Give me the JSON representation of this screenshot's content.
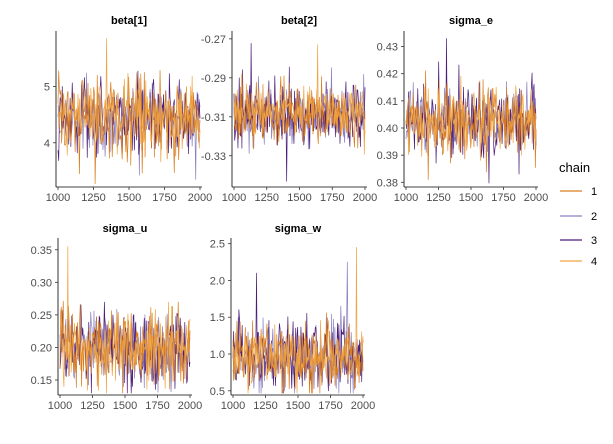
{
  "legend": {
    "title": "chain",
    "placement": "right",
    "entries": [
      {
        "label": "1",
        "color": "#d97c1e"
      },
      {
        "label": "2",
        "color": "#8a7fbf"
      },
      {
        "label": "3",
        "color": "#4b1d7a"
      },
      {
        "label": "4",
        "color": "#f0a443"
      }
    ]
  },
  "chart_data": [
    {
      "type": "line",
      "title": "beta[1]",
      "x_range": [
        1000,
        2000
      ],
      "x_ticks": [
        1000,
        1250,
        1500,
        1750,
        2000
      ],
      "ylim": [
        3.25,
        5.95
      ],
      "y_ticks": [
        4,
        5
      ],
      "y_tick_labels": [
        "4",
        "5"
      ],
      "series_center": [
        4.45,
        4.45,
        4.45,
        4.45
      ],
      "series_spread": [
        0.38,
        0.3,
        0.36,
        0.28
      ],
      "draw_order": [
        1,
        2,
        0,
        3
      ],
      "extremes": [
        {
          "chain": 3,
          "iteration": 1340,
          "value": 5.85
        },
        {
          "chain": 1,
          "iteration": 1970,
          "value": 3.35
        },
        {
          "chain": 0,
          "iteration": 1150,
          "value": 3.45
        }
      ]
    },
    {
      "type": "line",
      "title": "beta[2]",
      "x_range": [
        1000,
        2000
      ],
      "x_ticks": [
        1000,
        1250,
        1500,
        1750,
        2000
      ],
      "ylim": [
        -0.345,
        -0.267
      ],
      "y_ticks": [
        -0.33,
        -0.31,
        -0.29,
        -0.27
      ],
      "y_tick_labels": [
        "-0.33",
        "-0.31",
        "-0.29",
        "-0.27"
      ],
      "series_center": [
        -0.308,
        -0.308,
        -0.308,
        -0.308
      ],
      "series_spread": [
        0.008,
        0.007,
        0.009,
        0.006
      ],
      "draw_order": [
        1,
        2,
        0,
        3
      ],
      "extremes": [
        {
          "chain": 3,
          "iteration": 1640,
          "value": -0.273
        },
        {
          "chain": 2,
          "iteration": 1400,
          "value": -0.343
        }
      ]
    },
    {
      "type": "line",
      "title": "sigma_e",
      "x_range": [
        1000,
        2000
      ],
      "x_ticks": [
        1000,
        1250,
        1500,
        1750,
        2000
      ],
      "ylim": [
        0.379,
        0.435
      ],
      "y_ticks": [
        0.38,
        0.39,
        0.4,
        0.41,
        0.42,
        0.43
      ],
      "y_tick_labels": [
        "0.38",
        "0.39",
        "0.40",
        "0.41",
        "0.42",
        "0.43"
      ],
      "series_center": [
        0.403,
        0.403,
        0.403,
        0.403
      ],
      "series_spread": [
        0.0065,
        0.006,
        0.007,
        0.0055
      ],
      "draw_order": [
        1,
        2,
        0,
        3
      ],
      "extremes": [
        {
          "chain": 2,
          "iteration": 1310,
          "value": 0.433
        },
        {
          "chain": 0,
          "iteration": 1170,
          "value": 0.381
        }
      ]
    },
    {
      "type": "line",
      "title": "sigma_u",
      "x_range": [
        1000,
        2000
      ],
      "x_ticks": [
        1000,
        1250,
        1500,
        1750,
        2000
      ],
      "ylim": [
        0.13,
        0.365
      ],
      "y_ticks": [
        0.15,
        0.2,
        0.25,
        0.3,
        0.35
      ],
      "y_tick_labels": [
        "0.15",
        "0.20",
        "0.25",
        "0.30",
        "0.35"
      ],
      "series_center": [
        0.2,
        0.2,
        0.2,
        0.2
      ],
      "series_spread": [
        0.03,
        0.028,
        0.032,
        0.026
      ],
      "draw_order": [
        1,
        2,
        0,
        3
      ],
      "extremes": [
        {
          "chain": 3,
          "iteration": 1060,
          "value": 0.355
        },
        {
          "chain": 2,
          "iteration": 1560,
          "value": 0.14
        }
      ]
    },
    {
      "type": "line",
      "title": "sigma_w",
      "x_range": [
        1000,
        2000
      ],
      "x_ticks": [
        1000,
        1250,
        1500,
        1750,
        2000
      ],
      "ylim": [
        0.47,
        2.55
      ],
      "y_ticks": [
        0.5,
        1.0,
        1.5,
        2.0,
        2.5
      ],
      "y_tick_labels": [
        "0.5",
        "1.0",
        "1.5",
        "2.0",
        "2.5"
      ],
      "series_center": [
        0.95,
        0.95,
        0.95,
        0.95
      ],
      "series_spread": [
        0.24,
        0.22,
        0.25,
        0.2
      ],
      "draw_order": [
        1,
        2,
        0,
        3
      ],
      "extremes": [
        {
          "chain": 3,
          "iteration": 1950,
          "value": 2.45
        },
        {
          "chain": 2,
          "iteration": 1180,
          "value": 2.1
        },
        {
          "chain": 1,
          "iteration": 1880,
          "value": 2.25
        },
        {
          "chain": 0,
          "iteration": 1400,
          "value": 0.55
        }
      ]
    }
  ]
}
